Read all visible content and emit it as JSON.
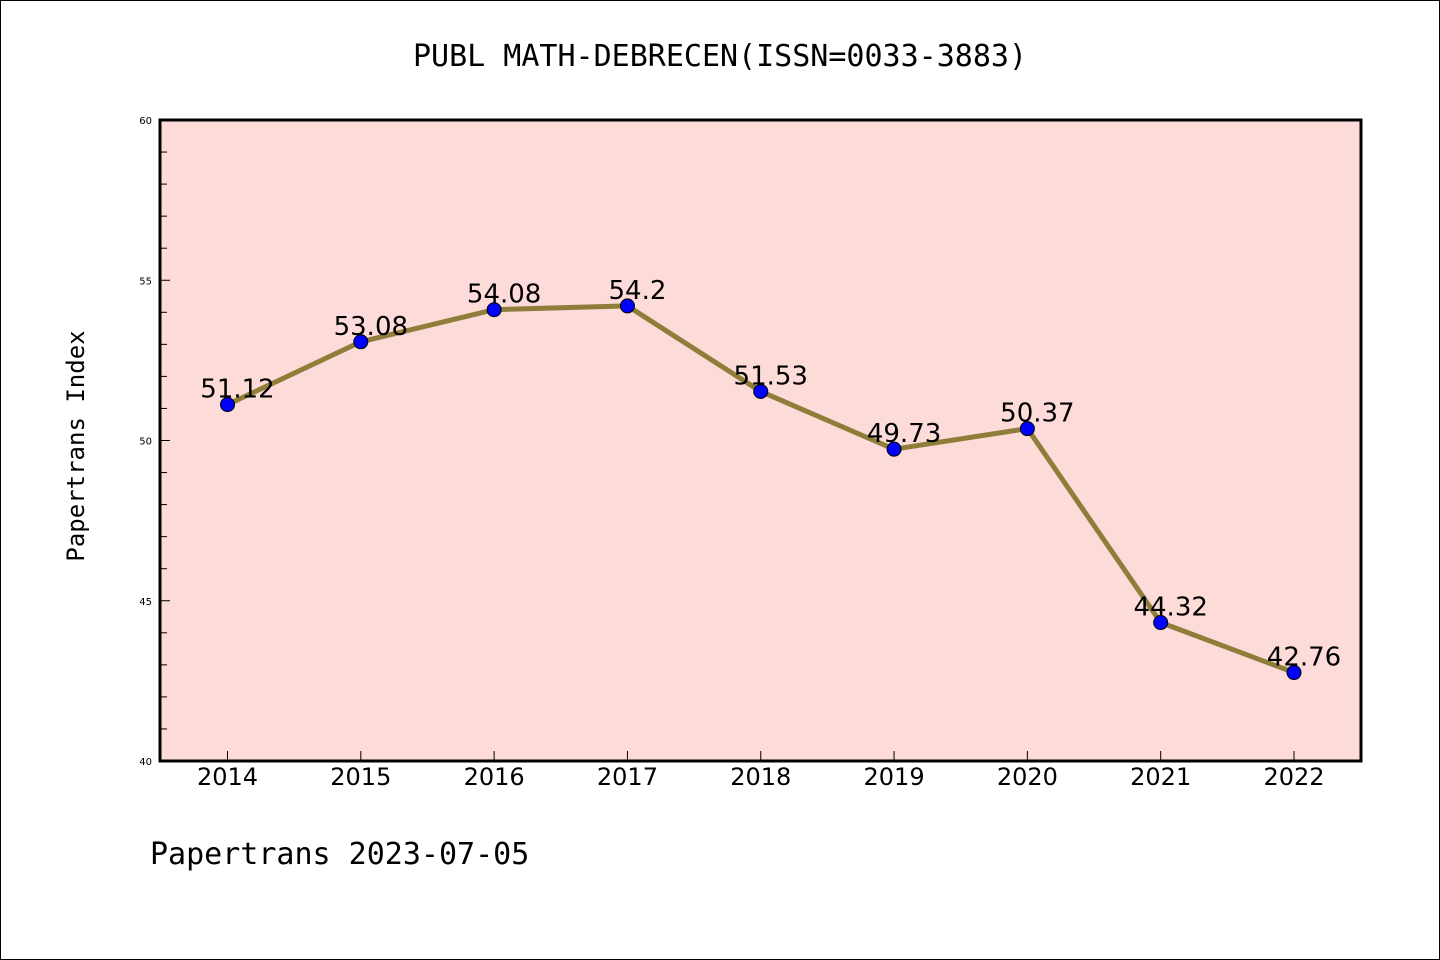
{
  "chart_data": {
    "type": "line",
    "title": "PUBL MATH-DEBRECEN(ISSN=0033-3883)",
    "xlabel": "",
    "ylabel": "Papertrans Index",
    "categories": [
      "2014",
      "2015",
      "2016",
      "2017",
      "2018",
      "2019",
      "2020",
      "2021",
      "2022"
    ],
    "series": [
      {
        "values": [
          51.12,
          53.08,
          54.08,
          54.2,
          51.53,
          49.73,
          50.37,
          44.32,
          42.76
        ],
        "data_labels": [
          "51.12",
          "53.08",
          "54.08",
          "54.2",
          "51.53",
          "49.73",
          "50.37",
          "44.32",
          "42.76"
        ]
      }
    ],
    "ylim": [
      40,
      60
    ],
    "yticks": [
      "40",
      "45",
      "50",
      "55",
      "60"
    ],
    "grid": false,
    "colors": {
      "plot_background": "#fddbd8",
      "line": "#8f7d3a",
      "marker": "#0000ff"
    }
  },
  "footer": "Papertrans 2023-07-05"
}
